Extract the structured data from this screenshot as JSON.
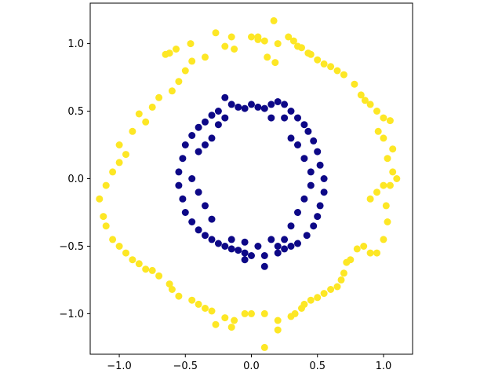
{
  "chart_data": {
    "type": "scatter",
    "title": "",
    "xlabel": "",
    "ylabel": "",
    "xlim": [
      -1.22,
      1.22
    ],
    "ylim": [
      -1.3,
      1.3
    ],
    "xticks": [
      -1.0,
      -0.5,
      0.0,
      0.5,
      1.0
    ],
    "xtick_labels": [
      "−1.0",
      "−0.5",
      "0.0",
      "0.5",
      "1.0"
    ],
    "yticks": [
      -1.0,
      -0.5,
      0.0,
      0.5,
      1.0
    ],
    "ytick_labels": [
      "−1.0",
      "−0.5",
      "0.0",
      "0.5",
      "1.0"
    ],
    "grid": false,
    "legend": "none",
    "series": [
      {
        "color": "#fde725",
        "points": [
          [
            0.17,
            1.17
          ],
          [
            -0.27,
            1.08
          ],
          [
            -0.46,
            1.0
          ],
          [
            -0.57,
            0.96
          ],
          [
            -0.62,
            0.93
          ],
          [
            -0.65,
            0.92
          ],
          [
            -0.2,
            0.98
          ],
          [
            -0.13,
            0.96
          ],
          [
            0.0,
            1.05
          ],
          [
            0.05,
            1.03
          ],
          [
            0.05,
            1.05
          ],
          [
            0.1,
            1.02
          ],
          [
            0.2,
            1.0
          ],
          [
            0.28,
            1.05
          ],
          [
            0.32,
            1.02
          ],
          [
            0.35,
            0.98
          ],
          [
            0.38,
            0.97
          ],
          [
            0.43,
            0.93
          ],
          [
            0.45,
            0.92
          ],
          [
            0.5,
            0.88
          ],
          [
            0.55,
            0.85
          ],
          [
            0.6,
            0.83
          ],
          [
            0.65,
            0.8
          ],
          [
            0.7,
            0.77
          ],
          [
            0.78,
            0.7
          ],
          [
            0.83,
            0.62
          ],
          [
            0.86,
            0.58
          ],
          [
            0.9,
            0.55
          ],
          [
            0.95,
            0.5
          ],
          [
            1.0,
            0.45
          ],
          [
            1.05,
            0.43
          ],
          [
            0.96,
            0.35
          ],
          [
            1.0,
            0.3
          ],
          [
            1.07,
            0.22
          ],
          [
            1.03,
            0.15
          ],
          [
            1.07,
            0.05
          ],
          [
            1.1,
            0.0
          ],
          [
            1.05,
            -0.05
          ],
          [
            1.0,
            -0.05
          ],
          [
            0.95,
            -0.1
          ],
          [
            0.9,
            -0.15
          ],
          [
            1.02,
            -0.2
          ],
          [
            1.03,
            -0.32
          ],
          [
            1.0,
            -0.45
          ],
          [
            0.95,
            -0.55
          ],
          [
            0.9,
            -0.55
          ],
          [
            0.85,
            -0.5
          ],
          [
            0.8,
            -0.52
          ],
          [
            0.75,
            -0.6
          ],
          [
            0.72,
            -0.62
          ],
          [
            0.7,
            -0.7
          ],
          [
            0.68,
            -0.75
          ],
          [
            0.65,
            -0.8
          ],
          [
            0.6,
            -0.82
          ],
          [
            0.55,
            -0.85
          ],
          [
            0.5,
            -0.88
          ],
          [
            0.45,
            -0.9
          ],
          [
            0.4,
            -0.93
          ],
          [
            0.38,
            -0.96
          ],
          [
            0.33,
            -1.0
          ],
          [
            0.3,
            -1.02
          ],
          [
            0.2,
            -1.05
          ],
          [
            0.1,
            -1.0
          ],
          [
            0.0,
            -1.0
          ],
          [
            -0.05,
            -1.0
          ],
          [
            -0.13,
            -1.05
          ],
          [
            -0.2,
            -1.03
          ],
          [
            -0.27,
            -1.08
          ],
          [
            -0.3,
            -0.98
          ],
          [
            -0.35,
            -0.96
          ],
          [
            -0.4,
            -0.93
          ],
          [
            -0.45,
            -0.9
          ],
          [
            -0.55,
            -0.87
          ],
          [
            -0.6,
            -0.82
          ],
          [
            -0.62,
            -0.78
          ],
          [
            -0.7,
            -0.72
          ],
          [
            -0.75,
            -0.68
          ],
          [
            -0.8,
            -0.67
          ],
          [
            -0.85,
            -0.63
          ],
          [
            -0.9,
            -0.6
          ],
          [
            -0.95,
            -0.55
          ],
          [
            -1.0,
            -0.5
          ],
          [
            -1.05,
            -0.45
          ],
          [
            -1.1,
            -0.35
          ],
          [
            -1.12,
            -0.28
          ],
          [
            -1.15,
            -0.15
          ],
          [
            -1.1,
            -0.05
          ],
          [
            -1.05,
            0.05
          ],
          [
            -1.0,
            0.12
          ],
          [
            -0.95,
            0.18
          ],
          [
            -1.0,
            0.25
          ],
          [
            -0.9,
            0.35
          ],
          [
            -0.8,
            0.42
          ],
          [
            -0.85,
            0.48
          ],
          [
            -0.75,
            0.53
          ],
          [
            -0.7,
            0.6
          ],
          [
            -0.6,
            0.65
          ],
          [
            -0.55,
            0.72
          ],
          [
            -0.5,
            0.8
          ],
          [
            -0.45,
            0.87
          ],
          [
            -0.35,
            0.9
          ],
          [
            -0.15,
            1.05
          ],
          [
            0.12,
            0.9
          ],
          [
            0.18,
            0.86
          ],
          [
            0.1,
            -1.25
          ],
          [
            0.2,
            -1.12
          ],
          [
            -0.15,
            -1.1
          ]
        ]
      },
      {
        "color": "#0d0887",
        "points": [
          [
            -0.2,
            0.6
          ],
          [
            -0.15,
            0.55
          ],
          [
            -0.1,
            0.53
          ],
          [
            -0.05,
            0.52
          ],
          [
            0.0,
            0.55
          ],
          [
            0.05,
            0.53
          ],
          [
            0.1,
            0.52
          ],
          [
            0.15,
            0.55
          ],
          [
            0.2,
            0.57
          ],
          [
            0.25,
            0.55
          ],
          [
            0.3,
            0.5
          ],
          [
            0.35,
            0.45
          ],
          [
            0.4,
            0.4
          ],
          [
            0.43,
            0.35
          ],
          [
            0.47,
            0.28
          ],
          [
            0.5,
            0.2
          ],
          [
            0.52,
            0.1
          ],
          [
            0.55,
            0.0
          ],
          [
            0.55,
            -0.1
          ],
          [
            0.52,
            -0.2
          ],
          [
            0.5,
            -0.28
          ],
          [
            0.47,
            -0.35
          ],
          [
            0.42,
            -0.42
          ],
          [
            0.35,
            -0.48
          ],
          [
            0.3,
            -0.5
          ],
          [
            0.25,
            -0.52
          ],
          [
            0.2,
            -0.55
          ],
          [
            0.1,
            -0.57
          ],
          [
            0.0,
            -0.57
          ],
          [
            -0.05,
            -0.55
          ],
          [
            -0.1,
            -0.53
          ],
          [
            -0.15,
            -0.52
          ],
          [
            -0.2,
            -0.5
          ],
          [
            -0.25,
            -0.48
          ],
          [
            -0.3,
            -0.45
          ],
          [
            -0.35,
            -0.42
          ],
          [
            -0.4,
            -0.38
          ],
          [
            -0.45,
            -0.32
          ],
          [
            -0.5,
            -0.25
          ],
          [
            -0.52,
            -0.15
          ],
          [
            -0.55,
            -0.05
          ],
          [
            -0.55,
            0.05
          ],
          [
            -0.52,
            0.15
          ],
          [
            -0.5,
            0.25
          ],
          [
            -0.45,
            0.32
          ],
          [
            -0.4,
            0.38
          ],
          [
            -0.35,
            0.42
          ],
          [
            -0.3,
            0.47
          ],
          [
            -0.25,
            0.5
          ],
          [
            -0.3,
            0.3
          ],
          [
            -0.35,
            0.25
          ],
          [
            -0.4,
            0.2
          ],
          [
            -0.45,
            0.0
          ],
          [
            -0.4,
            -0.1
          ],
          [
            -0.35,
            -0.2
          ],
          [
            -0.3,
            -0.3
          ],
          [
            0.3,
            0.3
          ],
          [
            0.35,
            0.25
          ],
          [
            0.4,
            0.15
          ],
          [
            0.45,
            0.05
          ],
          [
            0.45,
            -0.05
          ],
          [
            0.4,
            -0.15
          ],
          [
            0.35,
            -0.25
          ],
          [
            0.3,
            -0.35
          ],
          [
            0.15,
            -0.45
          ],
          [
            0.05,
            -0.5
          ],
          [
            -0.05,
            -0.47
          ],
          [
            -0.15,
            -0.45
          ],
          [
            0.1,
            -0.65
          ],
          [
            -0.05,
            -0.6
          ],
          [
            0.2,
            -0.5
          ],
          [
            0.25,
            -0.45
          ],
          [
            -0.2,
            0.45
          ],
          [
            -0.25,
            0.4
          ],
          [
            0.25,
            0.45
          ],
          [
            0.15,
            0.45
          ]
        ]
      }
    ]
  }
}
